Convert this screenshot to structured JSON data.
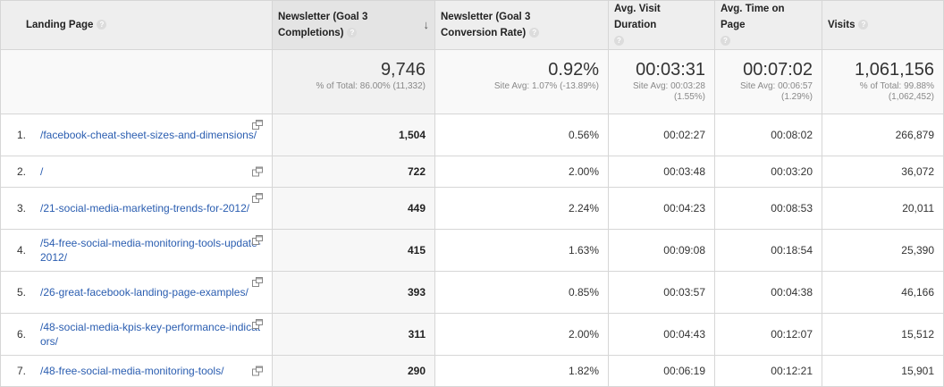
{
  "columns": {
    "landing_page": "Landing Page",
    "completions": "Newsletter (Goal 3 Completions)",
    "conversion_rate": "Newsletter (Goal 3 Conversion Rate)",
    "avg_visit_duration": "Avg. Visit Duration",
    "avg_time_on_page": "Avg. Time on Page",
    "visits": "Visits",
    "help_glyph": "?",
    "sort_glyph": "↓"
  },
  "totals": {
    "completions": {
      "value": "9,746",
      "sub": "% of Total: 86.00% (11,332)"
    },
    "conversion_rate": {
      "value": "0.92%",
      "sub": "Site Avg: 1.07% (-13.89%)"
    },
    "avg_visit_duration": {
      "value": "00:03:31",
      "sub": "Site Avg: 00:03:28 (1.55%)"
    },
    "avg_time_on_page": {
      "value": "00:07:02",
      "sub": "Site Avg: 00:06:57 (1.29%)"
    },
    "visits": {
      "value": "1,061,156",
      "sub": "% of Total: 99.88% (1,062,452)"
    }
  },
  "rows": [
    {
      "rank": "1.",
      "page": "/facebook-cheat-sheet-sizes-and-dimensions/",
      "completions": "1,504",
      "conversion_rate": "0.56%",
      "avg_visit_duration": "00:02:27",
      "avg_time_on_page": "00:08:02",
      "visits": "266,879"
    },
    {
      "rank": "2.",
      "page": "/",
      "completions": "722",
      "conversion_rate": "2.00%",
      "avg_visit_duration": "00:03:48",
      "avg_time_on_page": "00:03:20",
      "visits": "36,072"
    },
    {
      "rank": "3.",
      "page": "/21-social-media-marketing-trends-for-2012/",
      "completions": "449",
      "conversion_rate": "2.24%",
      "avg_visit_duration": "00:04:23",
      "avg_time_on_page": "00:08:53",
      "visits": "20,011"
    },
    {
      "rank": "4.",
      "page": "/54-free-social-media-monitoring-tools-update-2012/",
      "completions": "415",
      "conversion_rate": "1.63%",
      "avg_visit_duration": "00:09:08",
      "avg_time_on_page": "00:18:54",
      "visits": "25,390"
    },
    {
      "rank": "5.",
      "page": "/26-great-facebook-landing-page-examples/",
      "completions": "393",
      "conversion_rate": "0.85%",
      "avg_visit_duration": "00:03:57",
      "avg_time_on_page": "00:04:38",
      "visits": "46,166"
    },
    {
      "rank": "6.",
      "page": "/48-social-media-kpis-key-performance-indicators/",
      "completions": "311",
      "conversion_rate": "2.00%",
      "avg_visit_duration": "00:04:43",
      "avg_time_on_page": "00:12:07",
      "visits": "15,512"
    },
    {
      "rank": "7.",
      "page": "/48-free-social-media-monitoring-tools/",
      "completions": "290",
      "conversion_rate": "1.82%",
      "avg_visit_duration": "00:06:19",
      "avg_time_on_page": "00:12:21",
      "visits": "15,901"
    }
  ],
  "icons": {
    "help": "help-question-icon",
    "sort": "sort-descending-arrow-icon",
    "open_page": "external-link-icon"
  },
  "colors": {
    "link": "#2a5db0",
    "header_bg": "#eeeeee",
    "border": "#d6d6d6",
    "sub_text": "#888888"
  }
}
